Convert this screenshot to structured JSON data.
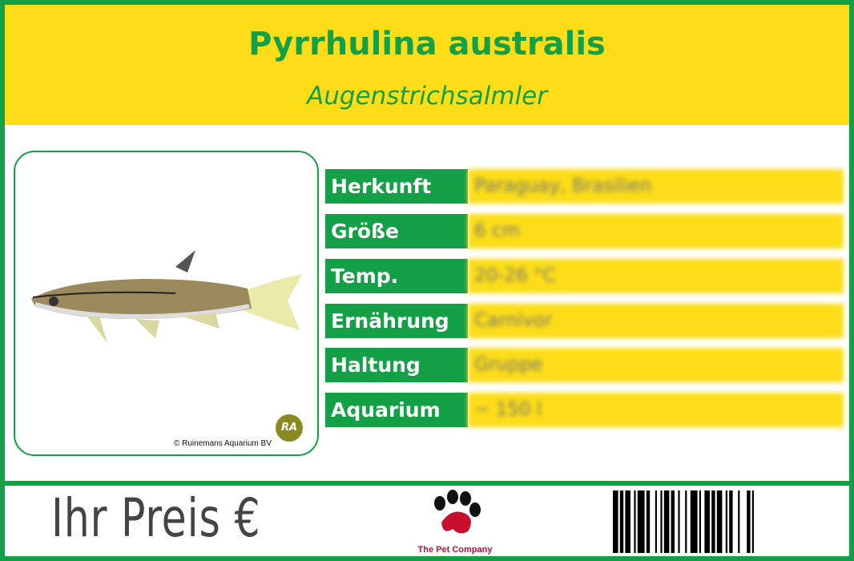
{
  "header": {
    "title": "Pyrrhulina australis",
    "subtitle": "Augenstrichsalmler"
  },
  "photo": {
    "credit": "© Ruinemans Aquarium BV",
    "logo_text": "RA"
  },
  "facts": [
    {
      "label": "Herkunft",
      "value": "Paraguay, Brasilien"
    },
    {
      "label": "Größe",
      "value": "6 cm"
    },
    {
      "label": "Temp.",
      "value": "20-26 °C"
    },
    {
      "label": "Ernährung",
      "value": "Carnivor"
    },
    {
      "label": "Haltung",
      "value": "Gruppe"
    },
    {
      "label": "Aquarium",
      "value": "~ 150 l"
    }
  ],
  "footer": {
    "price_label": "Ihr Preis €",
    "brand": "The Pet Company"
  },
  "colors": {
    "green": "#14a046",
    "yellow": "#fcdd17",
    "brand_red": "#c8102e"
  }
}
